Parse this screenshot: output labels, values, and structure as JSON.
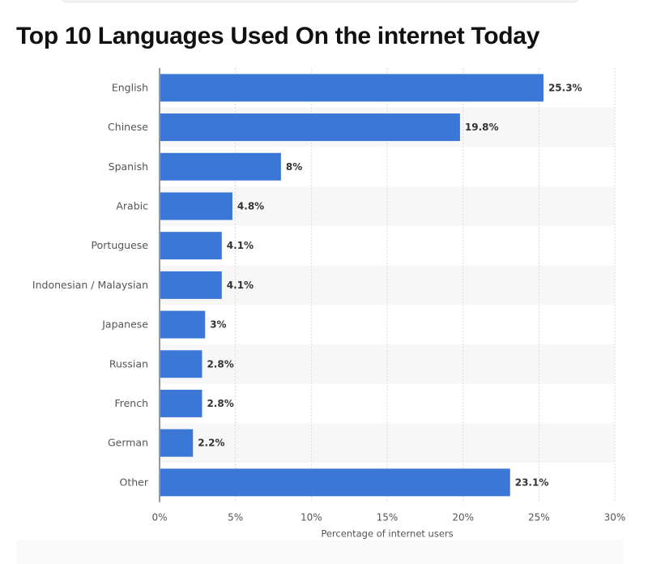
{
  "page": {
    "title": "Top 10 Languages Used On the internet Today"
  },
  "colors": {
    "bar": "#3a77d6",
    "band": "#f7f7f7",
    "grid": "#d9d9d9",
    "axis_text": "#555555",
    "value_text": "#333333"
  },
  "chart_data": {
    "type": "bar",
    "orientation": "horizontal",
    "title": "Top 10 Languages Used On the internet Today",
    "categories": [
      "English",
      "Chinese",
      "Spanish",
      "Arabic",
      "Portuguese",
      "Indonesian / Malaysian",
      "Japanese",
      "Russian",
      "French",
      "German",
      "Other"
    ],
    "values": [
      25.3,
      19.8,
      8,
      4.8,
      4.1,
      4.1,
      3,
      2.8,
      2.8,
      2.2,
      23.1
    ],
    "value_labels": [
      "25.3%",
      "19.8%",
      "8%",
      "4.8%",
      "4.1%",
      "4.1%",
      "3%",
      "2.8%",
      "2.8%",
      "2.2%",
      "23.1%"
    ],
    "xlabel": "Percentage of internet users",
    "ylabel": "",
    "xlim": [
      0,
      30
    ],
    "xticks": [
      0,
      5,
      10,
      15,
      20,
      25,
      30
    ],
    "xtick_labels": [
      "0%",
      "5%",
      "10%",
      "15%",
      "20%",
      "25%",
      "30%"
    ],
    "grid": true
  }
}
